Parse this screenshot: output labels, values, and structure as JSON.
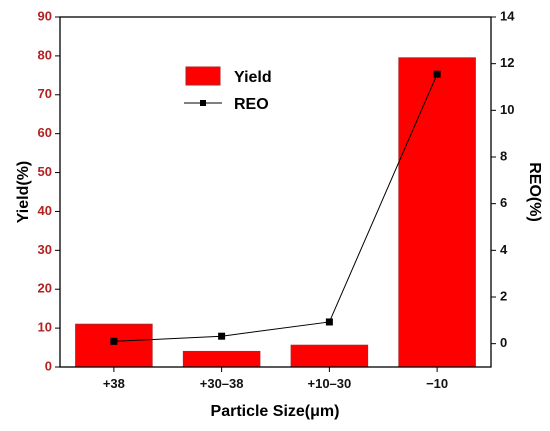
{
  "chart_data": {
    "type": "bar",
    "categories": [
      "+38",
      "+30–38",
      "+10–30",
      "−10"
    ],
    "series": [
      {
        "name": "Yield",
        "kind": "bar",
        "axis": "left",
        "color": "#ff0000",
        "values": [
          11,
          4,
          5.6,
          79.5
        ]
      },
      {
        "name": "REO",
        "kind": "line",
        "axis": "right",
        "color": "#000000",
        "marker": "square",
        "values": [
          0.1,
          0.32,
          0.93,
          11.55
        ]
      }
    ],
    "xlabel": "Particle Size(μm)",
    "ylabel": "Yield(%)",
    "y2label": "REO(%)",
    "ylim": [
      0,
      90
    ],
    "y2lim": [
      -1,
      14
    ],
    "yticks": [
      0,
      10,
      20,
      30,
      40,
      50,
      60,
      70,
      80,
      90
    ],
    "y2ticks": [
      0,
      2,
      4,
      6,
      8,
      10,
      12,
      14
    ],
    "legend": "top-center",
    "grid": false,
    "colors": {
      "left_axis": "#b22222",
      "right_axis": "#111111",
      "bar_fill": "#ff0000",
      "bar_edge": "#b22222"
    }
  }
}
